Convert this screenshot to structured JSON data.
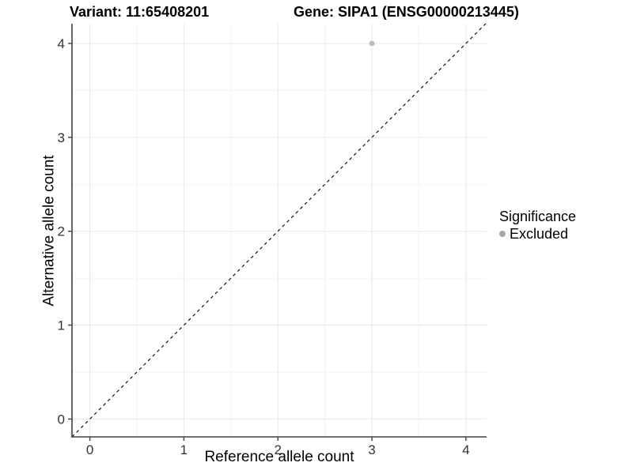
{
  "titles": {
    "variant": "Variant: 11:65408201",
    "gene": "Gene: SIPA1 (ENSG00000213445)"
  },
  "chart_data": {
    "type": "scatter",
    "xlabel": "Reference allele count",
    "ylabel": "Alternative allele count",
    "xlim": [
      -0.19,
      4.22
    ],
    "ylim": [
      -0.19,
      4.21
    ],
    "x_ticks": [
      0,
      1,
      2,
      3,
      4
    ],
    "y_ticks": [
      0,
      1,
      2,
      3,
      4
    ],
    "minor_grid_step": 0.5,
    "grid": true,
    "points": [
      {
        "x": 3,
        "y": 4,
        "series": "Excluded"
      }
    ],
    "reference_line": {
      "kind": "identity",
      "style": "dashed",
      "color": "#000000"
    },
    "legend": {
      "title": "Significance",
      "position": "right",
      "items": [
        {
          "label": "Excluded",
          "color": "#a6a6a6"
        }
      ]
    },
    "colors": {
      "point": "#bdbdbd",
      "grid_major": "#e7e7e7",
      "grid_minor": "#f3f3f3",
      "axis_line": "#404040",
      "tick_text": "#333333"
    }
  }
}
